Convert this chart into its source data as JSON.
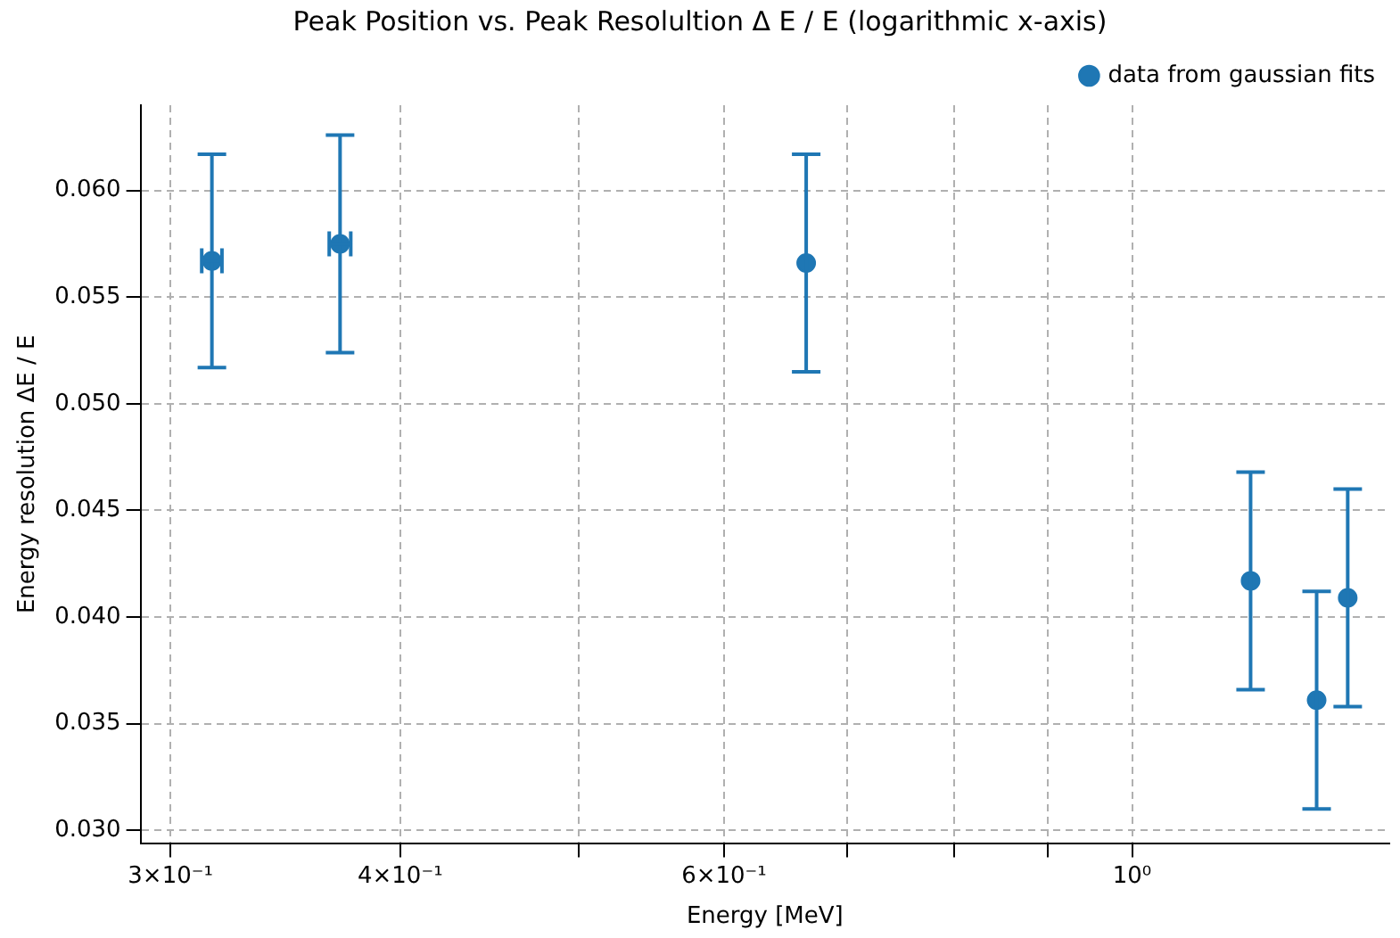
{
  "chart_data": {
    "type": "scatter",
    "title": "Peak Position vs. Peak Resolultion Δ E / E (logarithmic x-axis)",
    "xlabel": "Energy [MeV]",
    "ylabel": "Energy resolution ΔE / E",
    "series": [
      {
        "name": "data from gaussian fits",
        "color": "#1f77b4",
        "x": [
          0.316,
          0.371,
          0.665,
          1.16,
          1.26,
          1.31
        ],
        "values": [
          0.0567,
          0.0575,
          0.0566,
          0.0417,
          0.0361,
          0.0409
        ],
        "errors": [
          0.005,
          0.0051,
          0.0051,
          0.0051,
          0.0051,
          0.0051
        ],
        "xerrors": [
          0.004,
          0.005,
          null,
          null,
          null,
          null
        ]
      }
    ],
    "log": "x",
    "xlim": [
      0.289,
      1.38
    ],
    "xticks": [
      {
        "value": 0.3,
        "label": "3×10⁻¹"
      },
      {
        "value": 0.4,
        "label": "4×10⁻¹"
      },
      {
        "value": 0.5,
        "label": null
      },
      {
        "value": 0.6,
        "label": "6×10⁻¹"
      },
      {
        "value": 0.7,
        "label": null
      },
      {
        "value": 0.8,
        "label": null
      },
      {
        "value": 0.9,
        "label": null
      },
      {
        "value": 1,
        "label": "10⁰"
      }
    ],
    "ylim": [
      0.0294,
      0.064
    ],
    "yticks": [
      {
        "value": 0.03,
        "label": "0.030"
      },
      {
        "value": 0.035,
        "label": "0.035"
      },
      {
        "value": 0.04,
        "label": "0.040"
      },
      {
        "value": 0.045,
        "label": "0.045"
      },
      {
        "value": 0.05,
        "label": "0.050"
      },
      {
        "value": 0.055,
        "label": "0.055"
      },
      {
        "value": 0.06,
        "label": "0.060"
      }
    ],
    "grid": true,
    "legend": "top right",
    "marker": "circle"
  }
}
